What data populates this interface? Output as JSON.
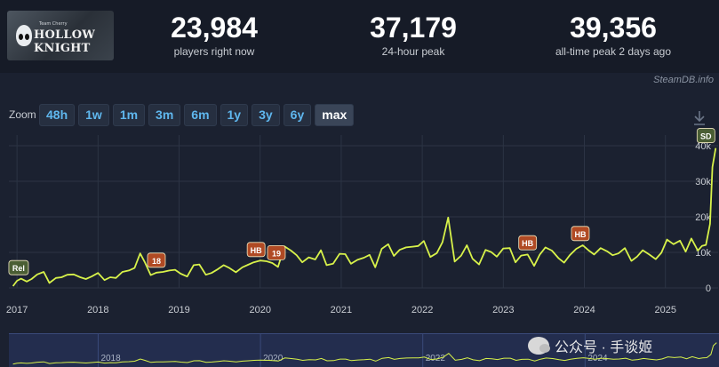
{
  "header": {
    "logo": {
      "title": "HOLLOW KNIGHT",
      "subtitle": "Team Cherry"
    },
    "stats": [
      {
        "value": "23,984",
        "label": "players right now"
      },
      {
        "value": "37,179",
        "label": "24-hour peak"
      },
      {
        "value": "39,356",
        "label": "all-time peak 2 days ago"
      }
    ],
    "credit": "SteamDB.info"
  },
  "zoom": {
    "label": "Zoom",
    "buttons": [
      "48h",
      "1w",
      "1m",
      "3m",
      "6m",
      "1y",
      "3y",
      "6y",
      "max"
    ],
    "active": "max"
  },
  "watermark": "公众号 · 手谈姬",
  "colors": {
    "line": "#d8f24a",
    "bg": "#1b2130",
    "accent": "#5fb7ee"
  },
  "icons": [
    "download-icon",
    "wechat-icon"
  ],
  "chart_data": {
    "type": "line",
    "x_unit": "year",
    "xlim": [
      2016.9,
      2025.65
    ],
    "ylim": [
      0,
      42000
    ],
    "yticks": [
      {
        "v": 0,
        "label": "0"
      },
      {
        "v": 10000,
        "label": "10k"
      },
      {
        "v": 20000,
        "label": "20k"
      },
      {
        "v": 30000,
        "label": "30k"
      },
      {
        "v": 40000,
        "label": "40k"
      }
    ],
    "xticks": [
      {
        "v": 2017,
        "label": "2017"
      },
      {
        "v": 2018,
        "label": "2018"
      },
      {
        "v": 2019,
        "label": "2019"
      },
      {
        "v": 2020,
        "label": "2020"
      },
      {
        "v": 2021,
        "label": "2021"
      },
      {
        "v": 2022,
        "label": "2022"
      },
      {
        "v": 2023,
        "label": "2023"
      },
      {
        "v": 2024,
        "label": "2024"
      },
      {
        "v": 2025,
        "label": "2025"
      }
    ],
    "nav_ticks": [
      {
        "v": 2018,
        "label": "2018"
      },
      {
        "v": 2020,
        "label": "2020"
      },
      {
        "v": 2022,
        "label": "2022"
      },
      {
        "v": 2024,
        "label": "2024"
      }
    ],
    "grid": true,
    "series": [
      {
        "x": [
          2016.95,
          2017.0,
          2017.05,
          2017.12,
          2017.18,
          2017.25,
          2017.33,
          2017.4,
          2017.48,
          2017.55,
          2017.62,
          2017.7,
          2017.78,
          2017.85,
          2017.92,
          2018.0,
          2018.08,
          2018.15,
          2018.22,
          2018.3,
          2018.38,
          2018.45,
          2018.52,
          2018.58,
          2018.65,
          2018.72,
          2018.8,
          2018.88,
          2018.95,
          2019.02,
          2019.1,
          2019.18,
          2019.25,
          2019.33,
          2019.4,
          2019.48,
          2019.55,
          2019.62,
          2019.7,
          2019.78,
          2019.85,
          2019.92,
          2020.0,
          2020.08,
          2020.15,
          2020.22,
          2020.3,
          2020.38,
          2020.45,
          2020.52,
          2020.6,
          2020.68,
          2020.75,
          2020.82,
          2020.9,
          2020.98,
          2021.05,
          2021.12,
          2021.2,
          2021.28,
          2021.35,
          2021.42,
          2021.5,
          2021.58,
          2021.65,
          2021.72,
          2021.8,
          2021.88,
          2021.95,
          2022.02,
          2022.1,
          2022.18,
          2022.25,
          2022.32,
          2022.4,
          2022.48,
          2022.55,
          2022.62,
          2022.7,
          2022.78,
          2022.85,
          2022.92,
          2023.0,
          2023.08,
          2023.15,
          2023.22,
          2023.3,
          2023.38,
          2023.45,
          2023.52,
          2023.6,
          2023.68,
          2023.75,
          2023.82,
          2023.9,
          2023.98,
          2024.05,
          2024.12,
          2024.2,
          2024.28,
          2024.35,
          2024.42,
          2024.5,
          2024.58,
          2024.65,
          2024.72,
          2024.8,
          2024.88,
          2024.95,
          2025.02,
          2025.1,
          2025.18,
          2025.25,
          2025.32,
          2025.4,
          2025.45,
          2025.5,
          2025.55,
          2025.58,
          2025.62
        ],
        "y": [
          500,
          2000,
          2600,
          1800,
          2500,
          3800,
          4500,
          1400,
          2800,
          3000,
          3700,
          3800,
          3000,
          2500,
          3200,
          4200,
          2200,
          3000,
          2800,
          4500,
          4900,
          5600,
          9700,
          7100,
          3600,
          4300,
          4500,
          4900,
          5100,
          4000,
          3200,
          6400,
          6600,
          3700,
          4200,
          5300,
          6400,
          5600,
          4400,
          5800,
          6500,
          7200,
          7700,
          7500,
          7000,
          5900,
          11700,
          10500,
          9200,
          7200,
          8600,
          8000,
          10600,
          6400,
          6800,
          9600,
          9500,
          6800,
          7900,
          8500,
          9300,
          5800,
          11000,
          12300,
          9000,
          10700,
          11400,
          11600,
          11800,
          13200,
          8700,
          9800,
          12900,
          19800,
          7400,
          9100,
          12000,
          8200,
          6600,
          10700,
          10100,
          8800,
          11100,
          11200,
          7200,
          9100,
          9400,
          6200,
          9400,
          11400,
          10500,
          8400,
          7100,
          9200,
          11000,
          12000,
          10600,
          9400,
          11200,
          10300,
          9200,
          9700,
          11200,
          7600,
          8800,
          10600,
          9400,
          8100,
          9900,
          13600,
          12300,
          13300,
          10200,
          13900,
          10500,
          11800,
          12100,
          18000,
          34000,
          39356
        ],
        "color": "#d8f24a"
      }
    ],
    "annotations": [
      {
        "label": "Rel",
        "x": 2017.02,
        "y": 2200,
        "color": "#4a5e34"
      },
      {
        "label": "18",
        "x": 2018.72,
        "y": 4300,
        "color": "#b04a24"
      },
      {
        "label": "HB",
        "x": 2019.95,
        "y": 7300,
        "color": "#b04a24"
      },
      {
        "label": "19",
        "x": 2020.2,
        "y": 6400,
        "color": "#b04a24"
      },
      {
        "label": "HB",
        "x": 2023.3,
        "y": 9200,
        "color": "#b04a24"
      },
      {
        "label": "HB",
        "x": 2023.95,
        "y": 11800,
        "color": "#b04a24"
      },
      {
        "label": "SD",
        "x": 2025.5,
        "y": 39356,
        "color": "#4a5e34"
      }
    ]
  }
}
